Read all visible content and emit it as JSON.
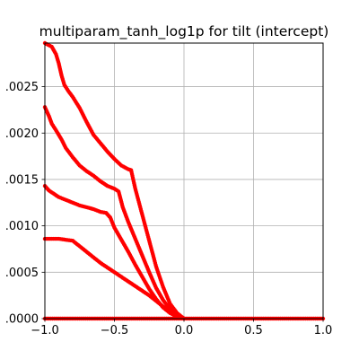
{
  "chart_data": {
    "type": "scatter",
    "title": "multiparam_tanh_log1p for tilt (intercept)",
    "xlabel": "",
    "ylabel": "",
    "xlim": [
      -1.0,
      1.0
    ],
    "ylim": [
      0.0,
      0.00297
    ],
    "x_ticks": [
      -1.0,
      -0.5,
      0.0,
      0.5,
      1.0
    ],
    "x_tick_labels": [
      "−1.0",
      "−0.5",
      "0.0",
      "0.5",
      "1.0"
    ],
    "y_ticks": [
      0.0,
      0.0005,
      0.001,
      0.0015,
      0.002,
      0.0025
    ],
    "y_tick_labels": [
      ".0000",
      ".0005",
      ".0010",
      ".0015",
      ".0020",
      ".0025"
    ],
    "grid": true,
    "marker_color": "#ff0000",
    "series": [
      {
        "points": [
          [
            -1.0,
            0.00297
          ],
          [
            -0.95,
            0.00293
          ],
          [
            -0.92,
            0.00285
          ],
          [
            -0.9,
            0.00275
          ],
          [
            -0.88,
            0.00262
          ],
          [
            -0.86,
            0.00252
          ],
          [
            -0.83,
            0.00245
          ],
          [
            -0.8,
            0.00239
          ],
          [
            -0.75,
            0.00227
          ],
          [
            -0.7,
            0.00212
          ],
          [
            -0.65,
            0.00198
          ],
          [
            -0.6,
            0.00189
          ],
          [
            -0.55,
            0.0018
          ],
          [
            -0.5,
            0.00172
          ],
          [
            -0.45,
            0.00165
          ],
          [
            -0.4,
            0.00161
          ],
          [
            -0.38,
            0.0016
          ],
          [
            -0.35,
            0.0014
          ],
          [
            -0.3,
            0.00112
          ],
          [
            -0.25,
            0.00084
          ],
          [
            -0.2,
            0.00056
          ],
          [
            -0.15,
            0.00034
          ],
          [
            -0.1,
            0.00016
          ],
          [
            -0.05,
            6e-05
          ],
          [
            0.0,
            0.0
          ]
        ]
      },
      {
        "points": [
          [
            -1.0,
            0.00228
          ],
          [
            -0.97,
            0.00218
          ],
          [
            -0.95,
            0.0021
          ],
          [
            -0.92,
            0.00203
          ],
          [
            -0.88,
            0.00193
          ],
          [
            -0.85,
            0.00184
          ],
          [
            -0.8,
            0.00174
          ],
          [
            -0.75,
            0.00165
          ],
          [
            -0.7,
            0.00159
          ],
          [
            -0.65,
            0.00154
          ],
          [
            -0.6,
            0.00148
          ],
          [
            -0.55,
            0.00143
          ],
          [
            -0.5,
            0.0014
          ],
          [
            -0.47,
            0.00137
          ],
          [
            -0.44,
            0.0012
          ],
          [
            -0.4,
            0.00104
          ],
          [
            -0.35,
            0.00086
          ],
          [
            -0.3,
            0.00068
          ],
          [
            -0.25,
            0.0005
          ],
          [
            -0.2,
            0.00033
          ],
          [
            -0.15,
            0.0002
          ],
          [
            -0.1,
            0.0001
          ],
          [
            -0.05,
            4e-05
          ],
          [
            0.0,
            0.0
          ]
        ]
      },
      {
        "points": [
          [
            -1.0,
            0.00143
          ],
          [
            -0.97,
            0.00138
          ],
          [
            -0.93,
            0.00134
          ],
          [
            -0.9,
            0.00131
          ],
          [
            -0.85,
            0.00128
          ],
          [
            -0.8,
            0.00125
          ],
          [
            -0.75,
            0.00122
          ],
          [
            -0.7,
            0.0012
          ],
          [
            -0.65,
            0.00118
          ],
          [
            -0.6,
            0.00115
          ],
          [
            -0.56,
            0.00114
          ],
          [
            -0.53,
            0.00109
          ],
          [
            -0.5,
            0.00098
          ],
          [
            -0.45,
            0.00085
          ],
          [
            -0.4,
            0.00072
          ],
          [
            -0.35,
            0.00058
          ],
          [
            -0.3,
            0.00045
          ],
          [
            -0.25,
            0.00032
          ],
          [
            -0.2,
            0.00021
          ],
          [
            -0.15,
            0.00012
          ],
          [
            -0.1,
            6e-05
          ],
          [
            -0.05,
            2e-05
          ],
          [
            0.0,
            0.0
          ]
        ]
      },
      {
        "points": [
          [
            -1.0,
            0.00086
          ],
          [
            -0.95,
            0.00086
          ],
          [
            -0.9,
            0.00086
          ],
          [
            -0.85,
            0.00085
          ],
          [
            -0.8,
            0.00084
          ],
          [
            -0.75,
            0.00078
          ],
          [
            -0.7,
            0.00072
          ],
          [
            -0.65,
            0.00066
          ],
          [
            -0.6,
            0.0006
          ],
          [
            -0.55,
            0.00055
          ],
          [
            -0.5,
            0.0005
          ],
          [
            -0.45,
            0.00045
          ],
          [
            -0.4,
            0.0004
          ],
          [
            -0.35,
            0.00035
          ],
          [
            -0.3,
            0.0003
          ],
          [
            -0.25,
            0.00025
          ],
          [
            -0.2,
            0.00019
          ],
          [
            -0.15,
            0.00013
          ],
          [
            -0.1,
            8e-05
          ],
          [
            -0.05,
            3e-05
          ],
          [
            0.0,
            0.0
          ]
        ]
      },
      {
        "points": [
          [
            -1.0,
            0.0
          ],
          [
            -0.5,
            0.0
          ],
          [
            0.0,
            0.0
          ],
          [
            0.5,
            0.0
          ],
          [
            1.0,
            0.0
          ]
        ]
      }
    ]
  }
}
